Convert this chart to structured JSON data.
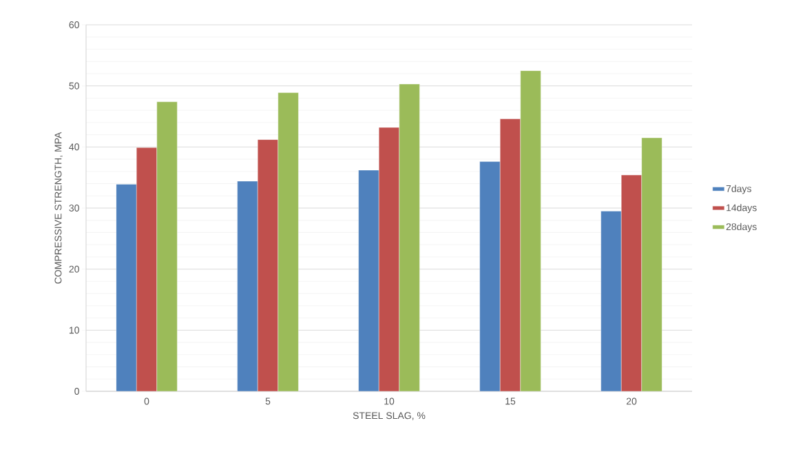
{
  "chart_data": {
    "type": "bar",
    "xlabel": "STEEL SLAG, %",
    "ylabel": "COMPRESSIVE STRENGTH, MPA",
    "categories": [
      "0",
      "5",
      "10",
      "15",
      "20"
    ],
    "series": [
      {
        "name": "7days",
        "color": "#4f81bd",
        "values": [
          33.9,
          34.4,
          36.2,
          37.6,
          29.5
        ]
      },
      {
        "name": "14days",
        "color": "#c0504d",
        "values": [
          39.9,
          41.2,
          43.2,
          44.6,
          35.4
        ]
      },
      {
        "name": "28days",
        "color": "#9bbb59",
        "values": [
          47.4,
          48.9,
          50.3,
          52.5,
          41.5
        ]
      }
    ],
    "ylim": [
      0,
      60
    ],
    "yticks": [
      0,
      10,
      20,
      30,
      40,
      50,
      60
    ],
    "grid": true,
    "legend": "right"
  }
}
